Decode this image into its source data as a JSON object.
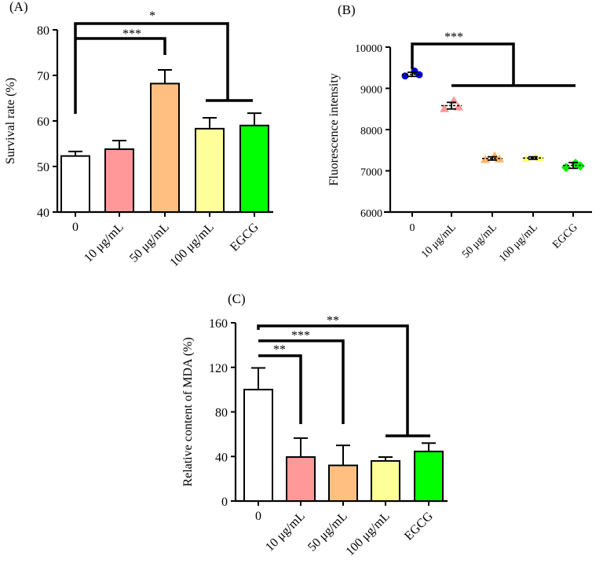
{
  "chart_data": [
    {
      "panel_label": "(A)",
      "type": "bar",
      "categories": [
        "0",
        "10 μg/mL",
        "50 μg/mL",
        "100 μg/mL",
        "EGCG"
      ],
      "values": [
        52.3,
        53.8,
        68.2,
        58.3,
        59.0
      ],
      "errors": [
        1.0,
        1.9,
        3.0,
        2.4,
        2.7
      ],
      "bar_colors": [
        "#ffffff",
        "#ff9999",
        "#ffbf80",
        "#ffff99",
        "#00ff00"
      ],
      "ylabel": "Survival rate (%)",
      "ylim": [
        40,
        80
      ],
      "yticks": [
        "40",
        "50",
        "60",
        "70",
        "80"
      ],
      "significance": [
        "***",
        "*"
      ]
    },
    {
      "panel_label": "(B)",
      "type": "scatter",
      "categories": [
        "0",
        "10 μg/mL",
        "50 μg/mL",
        "100 μg/mL",
        "EGCG"
      ],
      "means": [
        9340,
        8580,
        7300,
        7310,
        7130
      ],
      "errors": [
        50,
        80,
        40,
        30,
        70
      ],
      "points": [
        [
          9300,
          9420,
          9330
        ],
        [
          8500,
          8700,
          8540
        ],
        [
          7270,
          7360,
          7280
        ],
        [
          7290,
          7330,
          7310
        ],
        [
          7080,
          7180,
          7120
        ]
      ],
      "point_colors": [
        "#0000dd",
        "#ff9999",
        "#ffb366",
        "#ffff66",
        "#00ee00"
      ],
      "ylabel": "Fluorescence intensity",
      "ylim": [
        6000,
        10000
      ],
      "yticks": [
        "6000",
        "7000",
        "8000",
        "9000",
        "10000"
      ],
      "significance": [
        "***"
      ]
    },
    {
      "panel_label": "(C)",
      "type": "bar",
      "categories": [
        "0",
        "10 μg/mL",
        "50 μg/mL",
        "100 μg/mL",
        "EGCG"
      ],
      "values": [
        100,
        39.5,
        32,
        36,
        44.5
      ],
      "errors": [
        19.5,
        17,
        18,
        3.5,
        7.5
      ],
      "bar_colors": [
        "#ffffff",
        "#ff9999",
        "#ffbf80",
        "#ffff99",
        "#00ff00"
      ],
      "ylabel": "Relative content of MDA  (%)",
      "ylim": [
        0,
        160
      ],
      "yticks": [
        "0",
        "40",
        "80",
        "120",
        "160"
      ],
      "significance": [
        "**",
        "***",
        "**"
      ]
    }
  ]
}
